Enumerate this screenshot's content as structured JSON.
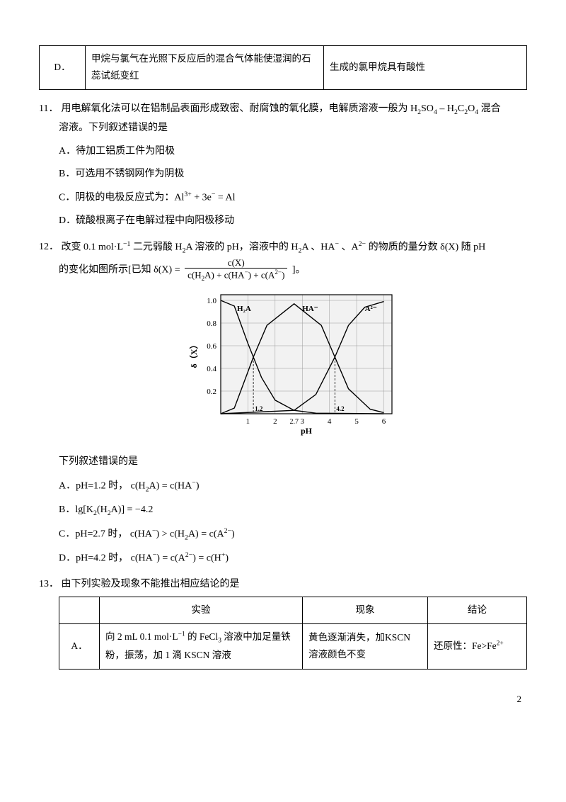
{
  "pageNumber": "2",
  "table_top": {
    "cell_D": "D．",
    "cell_exp": "甲烷与氯气在光照下反应后的混合气体能使湿润的石蕊试纸变红",
    "cell_conc": "生成的氯甲烷具有酸性"
  },
  "q11": {
    "num": "11．",
    "stem1": "用电解氧化法可以在铝制品表面形成致密、耐腐蚀的氧化膜，电解质溶液一般为 H",
    "stem1b": "SO",
    "stem1c": " – H",
    "stem1d": "C",
    "stem1e": "O",
    "stem1f": " 混合",
    "stem2": "溶液。下列叙述错误的是",
    "A": "A．待加工铝质工件为阳极",
    "B": "B．可选用不锈钢网作为阴极",
    "C_pre": "C．阴极的电极反应式为：Al",
    "C_mid": " + 3e",
    "C_post": " = Al",
    "D": "D．硫酸根离子在电解过程中向阳极移动"
  },
  "q12": {
    "num": "12．",
    "stem1_a": "改变 0.1 mol·L",
    "stem1_b": " 二元弱酸 H",
    "stem1_c": "A 溶液的 pH，溶液中的 H",
    "stem1_d": "A 、HA",
    "stem1_e": " 、A",
    "stem1_f": " 的物质的量分数 δ(X) 随 pH",
    "stem2_a": "的变化如图所示[已知 δ(X) = ",
    "frac_num": "c(X)",
    "frac_den_a": "c(H",
    "frac_den_b": "A) + c(HA",
    "frac_den_c": ") + c(A",
    "frac_den_d": ")",
    "stem2_b": " ]。",
    "prompt": "下列叙述错误的是",
    "A_pre": "A．pH=1.2 时， c(H",
    "A_mid": "A) = c(HA",
    "A_post": ")",
    "B_pre": "B．lg[K",
    "B_mid": "(H",
    "B_post": "A)] = −4.2",
    "C_pre": "C．pH=2.7 时， c(HA",
    "C_mid1": ") > c(H",
    "C_mid2": "A) = c(A",
    "C_post": ")",
    "D_pre": "D．pH=4.2 时， c(HA",
    "D_mid1": ") = c(A",
    "D_mid2": ") = c(H",
    "D_post": ")",
    "chart": {
      "type": "line",
      "xlabel": "pH",
      "ylabel": "δ（X）",
      "xlim": [
        0,
        6.3
      ],
      "ylim": [
        0,
        1.05
      ],
      "xticks": [
        1,
        2,
        3,
        4,
        5,
        6
      ],
      "xticks_extra": [
        2.7
      ],
      "yticks": [
        0.2,
        0.4,
        0.6,
        0.8,
        1.0
      ],
      "curve_labels": {
        "H2A": "H₂A",
        "HA": "HA⁻",
        "A2": "A²⁻"
      },
      "dash_x": [
        1.2,
        4.2
      ],
      "bg_color": "#f2f2f2",
      "grid_color": "#999999",
      "curve_color": "#000000",
      "series": {
        "H2A": [
          [
            0,
            1.0
          ],
          [
            0.5,
            0.95
          ],
          [
            1.0,
            0.62
          ],
          [
            1.2,
            0.5
          ],
          [
            1.5,
            0.32
          ],
          [
            2.0,
            0.12
          ],
          [
            2.7,
            0.03
          ],
          [
            3.5,
            0.005
          ],
          [
            6.0,
            0.0
          ]
        ],
        "HA": [
          [
            0,
            0.0
          ],
          [
            0.5,
            0.05
          ],
          [
            1.0,
            0.37
          ],
          [
            1.2,
            0.5
          ],
          [
            1.7,
            0.78
          ],
          [
            2.7,
            0.97
          ],
          [
            3.7,
            0.78
          ],
          [
            4.2,
            0.5
          ],
          [
            4.7,
            0.22
          ],
          [
            5.5,
            0.04
          ],
          [
            6.0,
            0.01
          ]
        ],
        "A2": [
          [
            0,
            0.0
          ],
          [
            2.7,
            0.03
          ],
          [
            3.5,
            0.17
          ],
          [
            4.2,
            0.5
          ],
          [
            4.7,
            0.78
          ],
          [
            5.3,
            0.94
          ],
          [
            6.0,
            0.99
          ]
        ]
      }
    }
  },
  "q13": {
    "num": "13．",
    "stem": "由下列实验及现象不能推出相应结论的是",
    "header": {
      "exp": "实验",
      "phen": "现象",
      "conc": "结论"
    },
    "rowA": {
      "label": "A．",
      "exp_a": "向 2 mL 0.1 mol·L",
      "exp_b": " 的 FeCl",
      "exp_c": " 溶液中加足量铁粉，振荡，加 1 滴 KSCN 溶液",
      "phen": "黄色逐渐消失，加KSCN 溶液颜色不变",
      "conc_a": "还原性：Fe>Fe",
      "conc_sup": "2+"
    }
  }
}
